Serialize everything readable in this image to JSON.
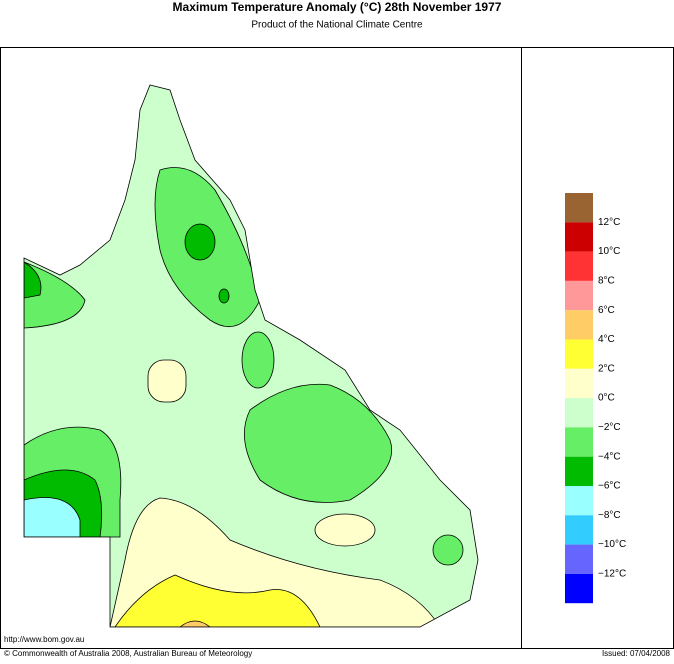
{
  "header": {
    "title": "Maximum Temperature Anomaly (°C)  28th November 1977",
    "subtitle": "Product of the National Climate Centre"
  },
  "legend": {
    "colors": [
      "#9a6432",
      "#cc0000",
      "#ff3333",
      "#ff9999",
      "#ffcc66",
      "#ffff33",
      "#ffffcc",
      "#ccffcc",
      "#66ee66",
      "#00bb00",
      "#99ffff",
      "#33ccff",
      "#6666ff",
      "#0000ff"
    ],
    "labels": [
      "12°C",
      "10°C",
      "8°C",
      "6°C",
      "4°C",
      "2°C",
      "0°C",
      "−2°C",
      "−4°C",
      "−6°C",
      "−8°C",
      "−10°C",
      "−12°C"
    ]
  },
  "footer": {
    "url": "http://www.bom.gov.au",
    "copyright": "© Commonwealth of Australia 2008, Australian Bureau of Meteorology",
    "issued": "Issued: 07/04/2008"
  }
}
